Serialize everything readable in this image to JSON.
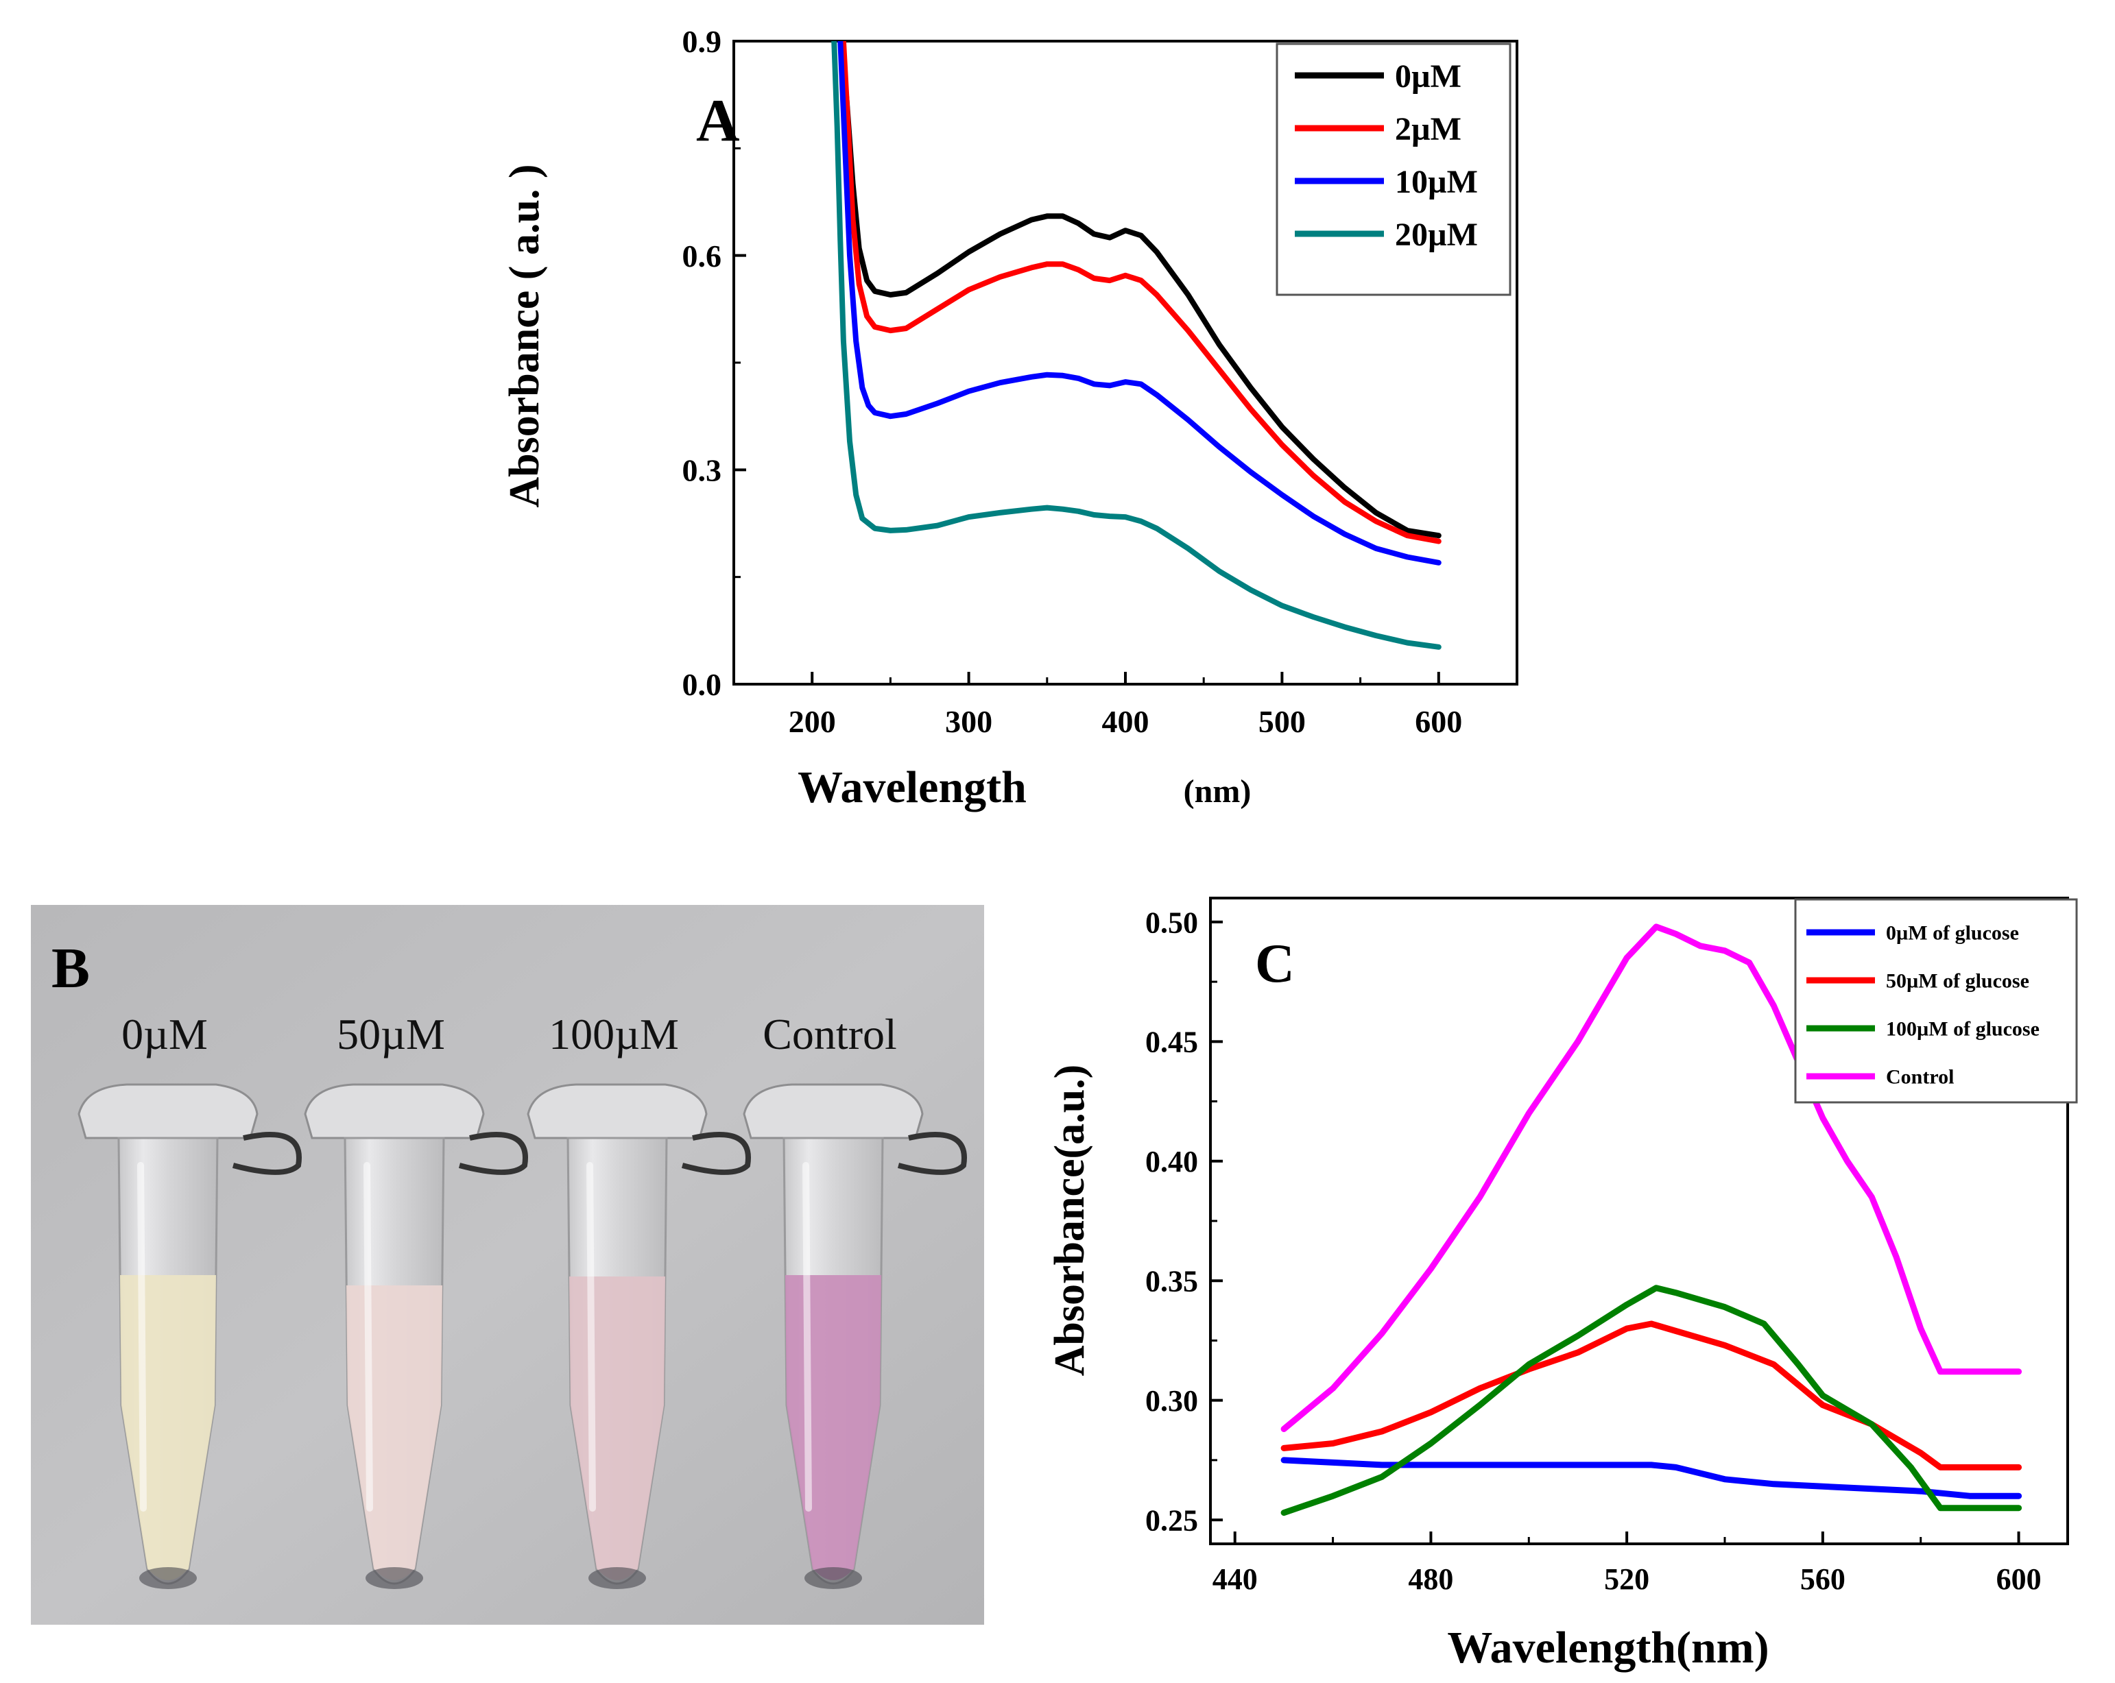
{
  "chart_data": [
    {
      "panel": "A",
      "type": "line",
      "title": "",
      "xlabel": "Wavelength",
      "xlabel_unit": "(nm)",
      "ylabel": "Absorbance ( a.u. )",
      "xlim": [
        150,
        650
      ],
      "ylim": [
        0.0,
        0.9
      ],
      "xticks": [
        "200",
        "300",
        "400",
        "500",
        "600"
      ],
      "yticks": [
        "0.0",
        "0.3",
        "0.6",
        "0.9"
      ],
      "legend": "top-right",
      "series": [
        {
          "name": "0µM",
          "color": "#000000",
          "x": [
            218,
            222,
            226,
            230,
            235,
            240,
            250,
            260,
            280,
            300,
            320,
            340,
            350,
            360,
            370,
            380,
            390,
            400,
            410,
            420,
            440,
            460,
            480,
            500,
            520,
            540,
            560,
            580,
            600
          ],
          "y": [
            0.9,
            0.82,
            0.7,
            0.61,
            0.565,
            0.55,
            0.545,
            0.548,
            0.575,
            0.605,
            0.63,
            0.65,
            0.655,
            0.655,
            0.645,
            0.63,
            0.625,
            0.635,
            0.628,
            0.605,
            0.545,
            0.475,
            0.415,
            0.36,
            0.315,
            0.275,
            0.24,
            0.215,
            0.208
          ]
        },
        {
          "name": "2µM",
          "color": "#ff0000",
          "x": [
            220,
            223,
            226,
            230,
            235,
            240,
            250,
            260,
            280,
            300,
            320,
            340,
            350,
            360,
            370,
            380,
            390,
            400,
            410,
            420,
            440,
            460,
            480,
            500,
            520,
            540,
            560,
            580,
            600
          ],
          "y": [
            0.9,
            0.78,
            0.65,
            0.56,
            0.515,
            0.5,
            0.495,
            0.498,
            0.525,
            0.552,
            0.57,
            0.583,
            0.588,
            0.588,
            0.58,
            0.568,
            0.565,
            0.572,
            0.565,
            0.545,
            0.495,
            0.44,
            0.385,
            0.335,
            0.292,
            0.255,
            0.228,
            0.208,
            0.2
          ]
        },
        {
          "name": "10µM",
          "color": "#0000ff",
          "x": [
            218,
            221,
            224,
            228,
            232,
            236,
            240,
            250,
            260,
            280,
            300,
            320,
            340,
            350,
            360,
            370,
            380,
            390,
            400,
            410,
            420,
            440,
            460,
            480,
            500,
            520,
            540,
            560,
            580,
            600
          ],
          "y": [
            0.9,
            0.75,
            0.6,
            0.48,
            0.415,
            0.39,
            0.38,
            0.375,
            0.378,
            0.393,
            0.41,
            0.422,
            0.43,
            0.433,
            0.432,
            0.428,
            0.42,
            0.418,
            0.423,
            0.42,
            0.405,
            0.37,
            0.332,
            0.297,
            0.265,
            0.235,
            0.21,
            0.19,
            0.178,
            0.17
          ]
        },
        {
          "name": "20µM",
          "color": "#008080",
          "x": [
            214,
            216,
            218,
            220,
            224,
            228,
            232,
            240,
            250,
            260,
            280,
            300,
            320,
            340,
            350,
            360,
            370,
            380,
            390,
            400,
            410,
            420,
            440,
            460,
            480,
            500,
            520,
            540,
            560,
            580,
            600
          ],
          "y": [
            0.9,
            0.78,
            0.62,
            0.48,
            0.34,
            0.265,
            0.232,
            0.218,
            0.215,
            0.216,
            0.222,
            0.234,
            0.24,
            0.245,
            0.247,
            0.245,
            0.242,
            0.237,
            0.235,
            0.234,
            0.228,
            0.218,
            0.19,
            0.158,
            0.132,
            0.11,
            0.094,
            0.08,
            0.068,
            0.058,
            0.052
          ]
        }
      ]
    },
    {
      "panel": "C",
      "type": "line",
      "title": "",
      "xlabel": "Wavelength(nm)",
      "ylabel": "Absorbance(a.u.)",
      "xlim": [
        435,
        610
      ],
      "ylim": [
        0.24,
        0.51
      ],
      "xticks": [
        "440",
        "480",
        "520",
        "560",
        "600"
      ],
      "yticks": [
        "0.25",
        "0.30",
        "0.35",
        "0.40",
        "0.45",
        "0.50"
      ],
      "legend": "top-right",
      "series": [
        {
          "name": "0µM of glucose",
          "color": "#0000ff",
          "x": [
            450,
            460,
            470,
            480,
            490,
            500,
            510,
            520,
            525,
            530,
            540,
            550,
            560,
            570,
            580,
            590,
            600
          ],
          "y": [
            0.275,
            0.274,
            0.273,
            0.273,
            0.273,
            0.273,
            0.273,
            0.273,
            0.273,
            0.272,
            0.267,
            0.265,
            0.264,
            0.263,
            0.262,
            0.26,
            0.26
          ]
        },
        {
          "name": "50µM of glucose",
          "color": "#ff0000",
          "x": [
            450,
            460,
            470,
            480,
            490,
            500,
            510,
            520,
            525,
            530,
            540,
            550,
            560,
            570,
            580,
            584,
            590,
            600
          ],
          "y": [
            0.28,
            0.282,
            0.287,
            0.295,
            0.305,
            0.313,
            0.32,
            0.33,
            0.332,
            0.329,
            0.323,
            0.315,
            0.298,
            0.29,
            0.278,
            0.272,
            0.272,
            0.272
          ]
        },
        {
          "name": "100µM of glucose",
          "color": "#008000",
          "x": [
            450,
            460,
            470,
            480,
            490,
            500,
            510,
            520,
            526,
            530,
            540,
            548,
            555,
            560,
            570,
            578,
            584,
            590,
            600
          ],
          "y": [
            0.253,
            0.26,
            0.268,
            0.282,
            0.298,
            0.315,
            0.327,
            0.34,
            0.347,
            0.345,
            0.339,
            0.332,
            0.315,
            0.302,
            0.29,
            0.272,
            0.255,
            0.255,
            0.255
          ]
        },
        {
          "name": "Control",
          "color": "#ff00ff",
          "x": [
            450,
            460,
            470,
            480,
            490,
            500,
            510,
            520,
            526,
            530,
            535,
            540,
            545,
            550,
            560,
            565,
            570,
            575,
            580,
            584,
            590,
            600
          ],
          "y": [
            0.288,
            0.305,
            0.328,
            0.355,
            0.385,
            0.42,
            0.45,
            0.485,
            0.498,
            0.495,
            0.49,
            0.488,
            0.483,
            0.465,
            0.418,
            0.4,
            0.385,
            0.36,
            0.33,
            0.312,
            0.312,
            0.312
          ]
        }
      ]
    }
  ],
  "panel_labels": {
    "a": "A",
    "b": "B",
    "c": "C"
  },
  "photo": {
    "tube_labels": [
      "0µM",
      "50µM",
      "100µM",
      "Control"
    ],
    "liquid_colors": [
      "#ebe4c4",
      "#ead6d2",
      "#e0c2c8",
      "#c98eba"
    ]
  }
}
